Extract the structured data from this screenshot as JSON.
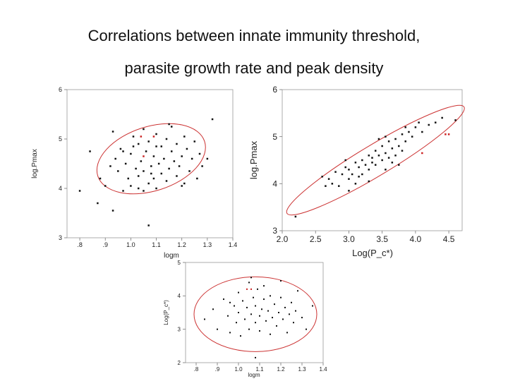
{
  "page": {
    "title_line1": "Correlations between innate immunity threshold,",
    "title_line2": "parasite growth rate and peak density"
  },
  "chart_data": [
    {
      "type": "scatter",
      "xlabel": "logm",
      "ylabel": "log.Pmax",
      "xlim": [
        0.75,
        1.4
      ],
      "ylim": [
        3,
        6
      ],
      "xticks": [
        {
          "v": 0.8,
          "t": ".8"
        },
        {
          "v": 0.9,
          "t": ".9"
        },
        {
          "v": 1.0,
          "t": "1.0"
        },
        {
          "v": 1.1,
          "t": "1.1"
        },
        {
          "v": 1.2,
          "t": "1.2"
        },
        {
          "v": 1.3,
          "t": "1.3"
        },
        {
          "v": 1.4,
          "t": "1.4"
        }
      ],
      "yticks": [
        {
          "v": 3,
          "t": "3"
        },
        {
          "v": 4,
          "t": "4"
        },
        {
          "v": 5,
          "t": "5"
        },
        {
          "v": 6,
          "t": "6"
        }
      ],
      "ellipse": {
        "cx": 1.08,
        "cy": 4.6,
        "rx": 0.22,
        "ry": 0.65,
        "angle": -18,
        "color": "#cc3333"
      },
      "series": [
        {
          "color": "#111111",
          "points": [
            [
              0.8,
              3.95
            ],
            [
              0.84,
              4.75
            ],
            [
              0.87,
              3.7
            ],
            [
              0.88,
              4.2
            ],
            [
              0.9,
              4.05
            ],
            [
              0.92,
              4.45
            ],
            [
              0.93,
              5.15
            ],
            [
              0.94,
              4.6
            ],
            [
              0.95,
              4.35
            ],
            [
              0.96,
              4.8
            ],
            [
              0.97,
              3.95
            ],
            [
              0.98,
              4.5
            ],
            [
              0.99,
              4.2
            ],
            [
              1.0,
              4.7
            ],
            [
              1.0,
              4.05
            ],
            [
              1.01,
              5.05
            ],
            [
              1.02,
              4.4
            ],
            [
              1.03,
              4.9
            ],
            [
              1.03,
              4.0
            ],
            [
              1.04,
              4.55
            ],
            [
              1.05,
              5.2
            ],
            [
              1.05,
              4.35
            ],
            [
              1.06,
              4.75
            ],
            [
              1.07,
              4.1
            ],
            [
              1.07,
              4.95
            ],
            [
              1.08,
              4.45
            ],
            [
              1.09,
              4.65
            ],
            [
              1.09,
              4.2
            ],
            [
              1.1,
              5.1
            ],
            [
              1.1,
              4.0
            ],
            [
              1.11,
              4.5
            ],
            [
              1.12,
              4.85
            ],
            [
              1.12,
              4.3
            ],
            [
              1.13,
              4.6
            ],
            [
              1.14,
              5.0
            ],
            [
              1.14,
              4.15
            ],
            [
              1.15,
              4.4
            ],
            [
              1.16,
              4.75
            ],
            [
              1.16,
              5.25
            ],
            [
              1.17,
              4.55
            ],
            [
              1.18,
              4.25
            ],
            [
              1.18,
              4.9
            ],
            [
              1.19,
              4.45
            ],
            [
              1.2,
              4.65
            ],
            [
              1.21,
              5.05
            ],
            [
              1.21,
              4.1
            ],
            [
              1.22,
              4.8
            ],
            [
              1.23,
              4.35
            ],
            [
              1.24,
              4.6
            ],
            [
              1.25,
              4.95
            ],
            [
              1.26,
              4.2
            ],
            [
              1.27,
              4.7
            ],
            [
              1.28,
              4.45
            ],
            [
              1.3,
              4.6
            ],
            [
              1.32,
              5.4
            ],
            [
              1.07,
              3.25
            ],
            [
              0.93,
              3.55
            ],
            [
              1.01,
              4.85
            ],
            [
              1.1,
              4.85
            ],
            [
              1.05,
              3.95
            ],
            [
              1.15,
              5.3
            ],
            [
              1.2,
              4.05
            ],
            [
              1.03,
              4.25
            ],
            [
              1.08,
              4.3
            ],
            [
              0.97,
              4.75
            ]
          ]
        },
        {
          "color": "#cc2222",
          "points": [
            [
              1.04,
              5.05
            ],
            [
              1.09,
              5.05
            ],
            [
              1.05,
              4.65
            ]
          ]
        }
      ]
    },
    {
      "type": "scatter",
      "xlabel": "Log(P_c*)",
      "ylabel": "log.Pmax",
      "xlim": [
        2.0,
        4.7
      ],
      "ylim": [
        3,
        6
      ],
      "xticks": [
        {
          "v": 2.0,
          "t": "2.0"
        },
        {
          "v": 2.5,
          "t": "2.5"
        },
        {
          "v": 3.0,
          "t": "3.0"
        },
        {
          "v": 3.5,
          "t": "3.5"
        },
        {
          "v": 4.0,
          "t": "4.0"
        },
        {
          "v": 4.5,
          "t": "4.5"
        }
      ],
      "yticks": [
        {
          "v": 3,
          "t": "3"
        },
        {
          "v": 4,
          "t": "4"
        },
        {
          "v": 5,
          "t": "5"
        },
        {
          "v": 6,
          "t": "6"
        }
      ],
      "ellipse": {
        "cx": 3.4,
        "cy": 4.5,
        "rx": 1.55,
        "ry": 0.33,
        "angle": -31,
        "color": "#cc3333"
      },
      "series": [
        {
          "color": "#111111",
          "points": [
            [
              2.2,
              3.3
            ],
            [
              2.6,
              4.15
            ],
            [
              2.7,
              4.1
            ],
            [
              2.75,
              4.0
            ],
            [
              2.8,
              4.25
            ],
            [
              2.85,
              3.95
            ],
            [
              2.9,
              4.2
            ],
            [
              2.95,
              4.35
            ],
            [
              3.0,
              4.1
            ],
            [
              3.0,
              4.3
            ],
            [
              3.05,
              4.2
            ],
            [
              3.1,
              4.45
            ],
            [
              3.1,
              4.0
            ],
            [
              3.15,
              4.35
            ],
            [
              3.2,
              4.5
            ],
            [
              3.2,
              4.2
            ],
            [
              3.25,
              4.4
            ],
            [
              3.3,
              4.6
            ],
            [
              3.3,
              4.3
            ],
            [
              3.35,
              4.55
            ],
            [
              3.4,
              4.7
            ],
            [
              3.4,
              4.4
            ],
            [
              3.45,
              4.6
            ],
            [
              3.5,
              4.8
            ],
            [
              3.5,
              4.5
            ],
            [
              3.55,
              4.65
            ],
            [
              3.6,
              4.9
            ],
            [
              3.6,
              4.55
            ],
            [
              3.65,
              4.75
            ],
            [
              3.7,
              4.95
            ],
            [
              3.7,
              4.6
            ],
            [
              3.75,
              4.8
            ],
            [
              3.8,
              5.05
            ],
            [
              3.8,
              4.7
            ],
            [
              3.85,
              4.9
            ],
            [
              3.9,
              5.1
            ],
            [
              3.95,
              5.0
            ],
            [
              4.0,
              5.2
            ],
            [
              4.05,
              5.3
            ],
            [
              4.1,
              5.1
            ],
            [
              4.2,
              5.25
            ],
            [
              4.3,
              5.3
            ],
            [
              4.4,
              5.4
            ],
            [
              4.6,
              5.35
            ],
            [
              3.3,
              4.05
            ],
            [
              3.0,
              3.85
            ],
            [
              3.55,
              4.3
            ],
            [
              3.75,
              4.4
            ],
            [
              2.95,
              4.5
            ],
            [
              3.45,
              4.95
            ],
            [
              3.65,
              4.45
            ],
            [
              3.85,
              5.2
            ],
            [
              2.65,
              3.95
            ],
            [
              3.15,
              4.15
            ],
            [
              3.35,
              4.45
            ],
            [
              3.55,
              5.0
            ]
          ]
        },
        {
          "color": "#cc2222",
          "points": [
            [
              4.1,
              4.65
            ],
            [
              4.45,
              5.05
            ],
            [
              4.5,
              5.05
            ]
          ]
        }
      ]
    },
    {
      "type": "scatter",
      "xlabel": "logm",
      "ylabel": "Log(P_c*)",
      "xlim": [
        0.75,
        1.4
      ],
      "ylim": [
        2,
        5
      ],
      "xticks": [
        {
          "v": 0.8,
          "t": ".8"
        },
        {
          "v": 0.9,
          "t": ".9"
        },
        {
          "v": 1.0,
          "t": "1.0"
        },
        {
          "v": 1.1,
          "t": "1.1"
        },
        {
          "v": 1.2,
          "t": "1.2"
        },
        {
          "v": 1.3,
          "t": "1.3"
        },
        {
          "v": 1.4,
          "t": "1.4"
        }
      ],
      "yticks": [
        {
          "v": 2,
          "t": "2"
        },
        {
          "v": 3,
          "t": "3"
        },
        {
          "v": 4,
          "t": "4"
        },
        {
          "v": 5,
          "t": "5"
        }
      ],
      "ellipse": {
        "cx": 1.08,
        "cy": 3.45,
        "rx": 0.29,
        "ry": 1.12,
        "angle": 0,
        "color": "#cc3333"
      },
      "series": [
        {
          "color": "#111111",
          "points": [
            [
              0.84,
              3.3
            ],
            [
              0.88,
              3.6
            ],
            [
              0.9,
              3.0
            ],
            [
              0.93,
              3.9
            ],
            [
              0.95,
              3.4
            ],
            [
              0.96,
              2.9
            ],
            [
              0.98,
              3.7
            ],
            [
              0.99,
              3.2
            ],
            [
              1.0,
              4.1
            ],
            [
              1.0,
              3.5
            ],
            [
              1.01,
              2.8
            ],
            [
              1.02,
              3.85
            ],
            [
              1.03,
              3.3
            ],
            [
              1.04,
              3.65
            ],
            [
              1.05,
              4.4
            ],
            [
              1.05,
              3.0
            ],
            [
              1.06,
              3.45
            ],
            [
              1.07,
              3.95
            ],
            [
              1.08,
              3.2
            ],
            [
              1.08,
              3.7
            ],
            [
              1.09,
              4.2
            ],
            [
              1.1,
              3.4
            ],
            [
              1.1,
              2.95
            ],
            [
              1.11,
              3.6
            ],
            [
              1.12,
              3.9
            ],
            [
              1.13,
              3.25
            ],
            [
              1.14,
              3.55
            ],
            [
              1.15,
              4.0
            ],
            [
              1.15,
              2.85
            ],
            [
              1.16,
              3.35
            ],
            [
              1.17,
              3.75
            ],
            [
              1.18,
              3.1
            ],
            [
              1.19,
              3.5
            ],
            [
              1.2,
              3.95
            ],
            [
              1.21,
              3.3
            ],
            [
              1.22,
              3.65
            ],
            [
              1.23,
              2.9
            ],
            [
              1.24,
              3.45
            ],
            [
              1.25,
              3.8
            ],
            [
              1.26,
              3.2
            ],
            [
              1.27,
              3.55
            ],
            [
              1.28,
              4.15
            ],
            [
              1.3,
              3.35
            ],
            [
              1.32,
              3.0
            ],
            [
              1.35,
              3.7
            ],
            [
              1.08,
              2.15
            ],
            [
              1.06,
              4.55
            ],
            [
              0.96,
              3.8
            ],
            [
              1.12,
              4.3
            ],
            [
              1.2,
              4.45
            ]
          ]
        },
        {
          "color": "#cc2222",
          "points": [
            [
              1.04,
              4.2
            ],
            [
              1.06,
              4.2
            ]
          ]
        }
      ]
    }
  ]
}
